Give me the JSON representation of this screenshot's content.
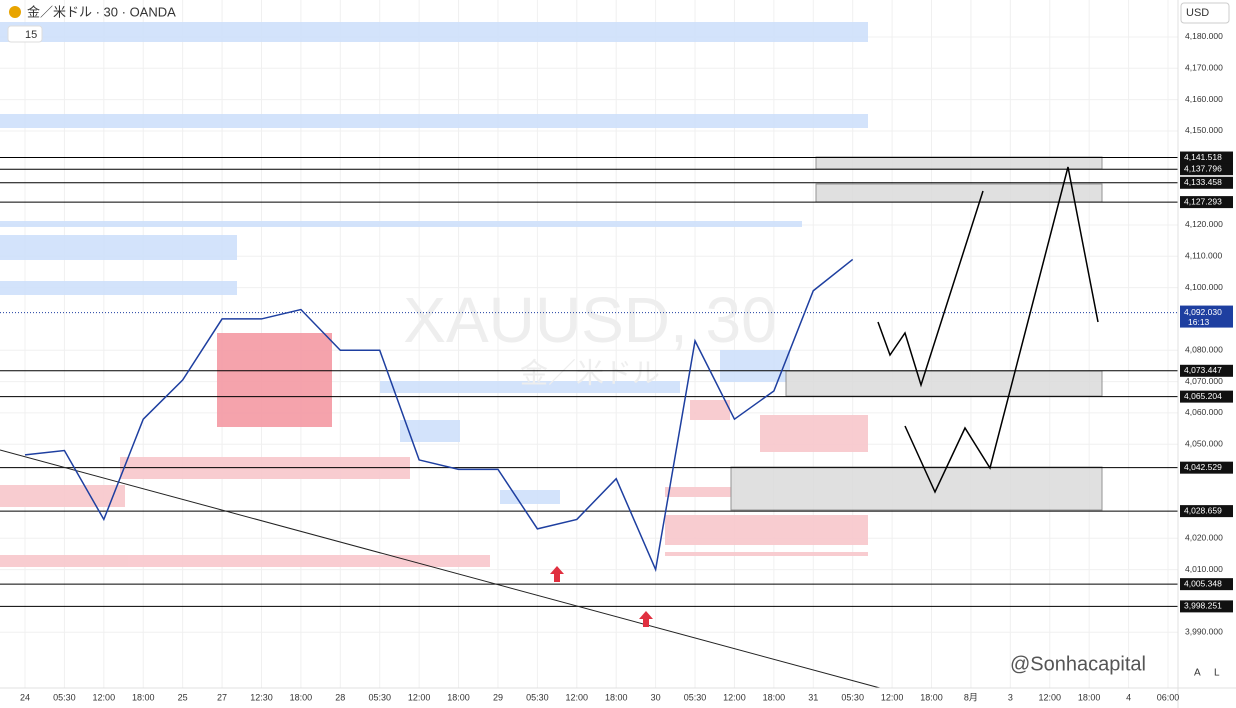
{
  "chart_data": {
    "type": "line",
    "title": "金／米ドル · 30 · OANDA",
    "interval": "15",
    "currency": "USD",
    "watermark": "XAUUSD, 30",
    "watermark_sub": "金／米ドル",
    "credit": "@Sonhacapital",
    "corner_labels": [
      "A",
      "L"
    ],
    "categories": [
      "24",
      "05:30",
      "12:00",
      "18:00",
      "25",
      "27",
      "12:30",
      "18:00",
      "28",
      "05:30",
      "12:00",
      "18:00",
      "29",
      "05:30",
      "12:00",
      "18:00",
      "30",
      "05:30",
      "12:00",
      "18:00",
      "31",
      "05:30",
      "12:00",
      "18:00",
      "8月",
      "3",
      "12:00",
      "18:00",
      "4",
      "06:00"
    ],
    "series": [
      {
        "color": "#1e3fa0",
        "values": [
          4046.6,
          4048,
          4026,
          4058,
          4070.5,
          4090,
          4090,
          4093,
          4080,
          4080,
          4045,
          4042,
          4042,
          4023,
          4026,
          4039,
          4010,
          4083,
          4058,
          4067,
          4099,
          4109,
          null,
          null,
          null,
          null,
          null,
          null,
          null,
          null
        ]
      }
    ],
    "ylim": [
      3972.2,
      4191.8
    ],
    "yticks": [
      {
        "value": 4180,
        "label": "4,180.000"
      },
      {
        "value": 4170,
        "label": "4,170.000"
      },
      {
        "value": 4160,
        "label": "4,160.000"
      },
      {
        "value": 4150,
        "label": "4,150.000"
      },
      {
        "value": 4120,
        "label": "4,120.000"
      },
      {
        "value": 4110,
        "label": "4,110.000"
      },
      {
        "value": 4100,
        "label": "4,100.000"
      },
      {
        "value": 4080,
        "label": "4,080.000"
      },
      {
        "value": 4070,
        "label": "4,070.000"
      },
      {
        "value": 4060,
        "label": "4,060.000"
      },
      {
        "value": 4050,
        "label": "4,050.000"
      },
      {
        "value": 4020,
        "label": "4,020.000"
      },
      {
        "value": 4010,
        "label": "4,010.000"
      },
      {
        "value": 3990,
        "label": "3,990.000"
      }
    ],
    "levels": [
      {
        "value": 4141.518,
        "label": "4,141.518"
      },
      {
        "value": 4137.796,
        "label": "4,137.796"
      },
      {
        "value": 4133.458,
        "label": "4,133.458"
      },
      {
        "value": 4127.293,
        "label": "4,127.293"
      },
      {
        "value": 4073.447,
        "label": "4,073.447"
      },
      {
        "value": 4065.204,
        "label": "4,065.204"
      },
      {
        "value": 4042.529,
        "label": "4,042.529"
      },
      {
        "value": 4028.659,
        "label": "4,028.659"
      },
      {
        "value": 4005.348,
        "label": "4,005.348"
      },
      {
        "value": 3998.251,
        "label": "3,998.251"
      }
    ],
    "current_price": {
      "value": 4092.03,
      "label": "4,092.030",
      "countdown": "16:13"
    },
    "grid": true
  }
}
